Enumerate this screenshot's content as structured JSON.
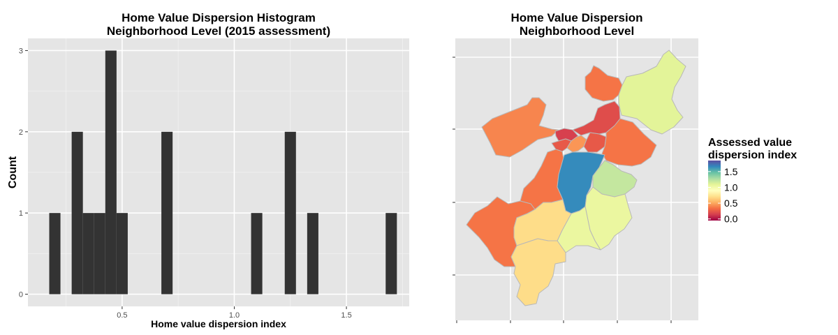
{
  "chart_data": [
    {
      "type": "bar",
      "title_line1": "Home Value Dispersion Histogram",
      "title_line2": "Neighborhood Level (2015 assessment)",
      "xlabel": "Home value dispersion index",
      "ylabel": "Count",
      "xlim": [
        0.08,
        1.78
      ],
      "ylim": [
        -0.15,
        3.15
      ],
      "x_ticks": [
        0.5,
        1.0,
        1.5
      ],
      "x_tick_labels": [
        "0.5",
        "1.0",
        "1.5"
      ],
      "y_ticks": [
        0,
        1,
        2,
        3
      ],
      "y_tick_labels": [
        "0",
        "1",
        "2",
        "3"
      ],
      "bin_width": 0.05,
      "bins": [
        {
          "x": 0.2,
          "count": 1
        },
        {
          "x": 0.3,
          "count": 2
        },
        {
          "x": 0.35,
          "count": 1
        },
        {
          "x": 0.4,
          "count": 1
        },
        {
          "x": 0.45,
          "count": 3
        },
        {
          "x": 0.5,
          "count": 1
        },
        {
          "x": 0.7,
          "count": 2
        },
        {
          "x": 1.1,
          "count": 1
        },
        {
          "x": 1.25,
          "count": 2
        },
        {
          "x": 1.35,
          "count": 1
        },
        {
          "x": 1.7,
          "count": 1
        }
      ],
      "grid": true,
      "bar_color": "#333333",
      "panel_color": "#e5e5e5"
    },
    {
      "type": "choropleth",
      "title_line1": "Home Value Dispersion",
      "title_line2": "Neighborhood Level",
      "legend_title_line1": "Assessed value",
      "legend_title_line2": "dispersion index",
      "legend_range": [
        -0.05,
        1.85
      ],
      "legend_ticks": [
        1.5,
        1.0,
        0.5,
        0.0
      ],
      "legend_tick_labels": [
        "1.5",
        "1.0",
        "0.5",
        "0.0"
      ],
      "legend_placement": "right",
      "color_scale": "Spectral",
      "border_color": "#b8b8b8",
      "panel_color": "#e5e5e5",
      "regions": [
        {
          "name": "north-lobe",
          "value": 0.35
        },
        {
          "name": "northeast",
          "value": 1.1
        },
        {
          "name": "northwest",
          "value": 0.4
        },
        {
          "name": "center-north",
          "value": 0.2
        },
        {
          "name": "center-small-1",
          "value": 0.15
        },
        {
          "name": "center-small-2",
          "value": 0.25
        },
        {
          "name": "center-small-3",
          "value": 0.45
        },
        {
          "name": "center-small-4",
          "value": 0.25
        },
        {
          "name": "east",
          "value": 0.35
        },
        {
          "name": "west-strip",
          "value": 0.35
        },
        {
          "name": "center",
          "value": 1.65
        },
        {
          "name": "east-mid",
          "value": 1.2
        },
        {
          "name": "southeast",
          "value": 1.05
        },
        {
          "name": "south-center",
          "value": 1.05
        },
        {
          "name": "southwest",
          "value": 0.35
        },
        {
          "name": "south-west-inner",
          "value": 0.7
        },
        {
          "name": "south",
          "value": 0.7
        }
      ]
    }
  ]
}
